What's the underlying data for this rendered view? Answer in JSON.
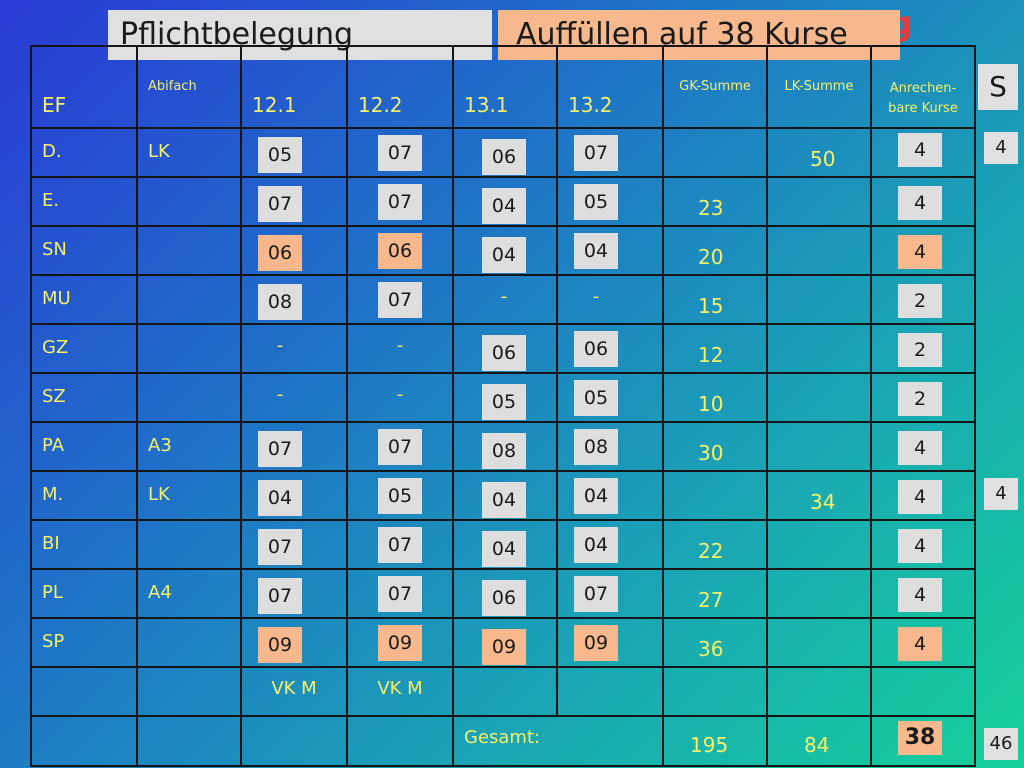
{
  "title_partial": "g",
  "header_left": "Pflichtbelegung",
  "header_right": "Auffüllen auf 38 Kurse",
  "columns": {
    "ef": "EF",
    "abifach": "Abifach",
    "sem1": "12.1",
    "sem2": "12.2",
    "sem3": "13.1",
    "sem4": "13.2",
    "gk": "GK-Summe",
    "lk": "LK-Summe",
    "anrechen_1": "Anrechen-",
    "anrechen_2": "bare Kurse"
  },
  "rows": [
    {
      "subject": "D.",
      "abifach": "LK",
      "grades": [
        "05",
        "07",
        "06",
        "07"
      ],
      "orange": [
        false,
        false,
        false,
        false
      ],
      "gk": "",
      "lk": "50",
      "kurse": "4",
      "kurse_orange": false
    },
    {
      "subject": "E.",
      "abifach": "",
      "grades": [
        "07",
        "07",
        "04",
        "05"
      ],
      "orange": [
        false,
        false,
        false,
        false
      ],
      "gk": "23",
      "lk": "",
      "kurse": "4",
      "kurse_orange": false
    },
    {
      "subject": "SN",
      "abifach": "",
      "grades": [
        "06",
        "06",
        "04",
        "04"
      ],
      "orange": [
        true,
        true,
        false,
        false
      ],
      "gk": "20",
      "lk": "",
      "kurse": "4",
      "kurse_orange": true
    },
    {
      "subject": "MU",
      "abifach": "",
      "grades": [
        "08",
        "07",
        "-",
        "-"
      ],
      "orange": [
        false,
        false,
        false,
        false
      ],
      "gk": "15",
      "lk": "",
      "kurse": "2",
      "kurse_orange": false
    },
    {
      "subject": "GZ",
      "abifach": "",
      "grades": [
        "-",
        "-",
        "06",
        "06"
      ],
      "orange": [
        false,
        false,
        false,
        false
      ],
      "gk": "12",
      "lk": "",
      "kurse": "2",
      "kurse_orange": false
    },
    {
      "subject": "SZ",
      "abifach": "",
      "grades": [
        "-",
        "-",
        "05",
        "05"
      ],
      "orange": [
        false,
        false,
        false,
        false
      ],
      "gk": "10",
      "lk": "",
      "kurse": "2",
      "kurse_orange": false
    },
    {
      "subject": "PA",
      "abifach": "A3",
      "grades": [
        "07",
        "07",
        "08",
        "08"
      ],
      "orange": [
        false,
        false,
        false,
        false
      ],
      "gk": "30",
      "lk": "",
      "kurse": "4",
      "kurse_orange": false
    },
    {
      "subject": "M.",
      "abifach": "LK",
      "grades": [
        "04",
        "05",
        "04",
        "04"
      ],
      "orange": [
        false,
        false,
        false,
        false
      ],
      "gk": "",
      "lk": "34",
      "kurse": "4",
      "kurse_orange": false
    },
    {
      "subject": "BI",
      "abifach": "",
      "grades": [
        "07",
        "07",
        "04",
        "04"
      ],
      "orange": [
        false,
        false,
        false,
        false
      ],
      "gk": "22",
      "lk": "",
      "kurse": "4",
      "kurse_orange": false
    },
    {
      "subject": "PL",
      "abifach": "A4",
      "grades": [
        "07",
        "07",
        "06",
        "07"
      ],
      "orange": [
        false,
        false,
        false,
        false
      ],
      "gk": "27",
      "lk": "",
      "kurse": "4",
      "kurse_orange": false
    },
    {
      "subject": "SP",
      "abifach": "",
      "grades": [
        "09",
        "09",
        "09",
        "09"
      ],
      "orange": [
        true,
        true,
        true,
        true
      ],
      "gk": "36",
      "lk": "",
      "kurse": "4",
      "kurse_orange": true
    }
  ],
  "vk_row": {
    "sem1": "VK M",
    "sem2": "VK M"
  },
  "total_row": {
    "label": "Gesamt:",
    "gk": "195",
    "lk": "84",
    "kurse": "38"
  },
  "side": {
    "s": "S",
    "row_d": "4",
    "row_m": "4",
    "total": "46"
  }
}
